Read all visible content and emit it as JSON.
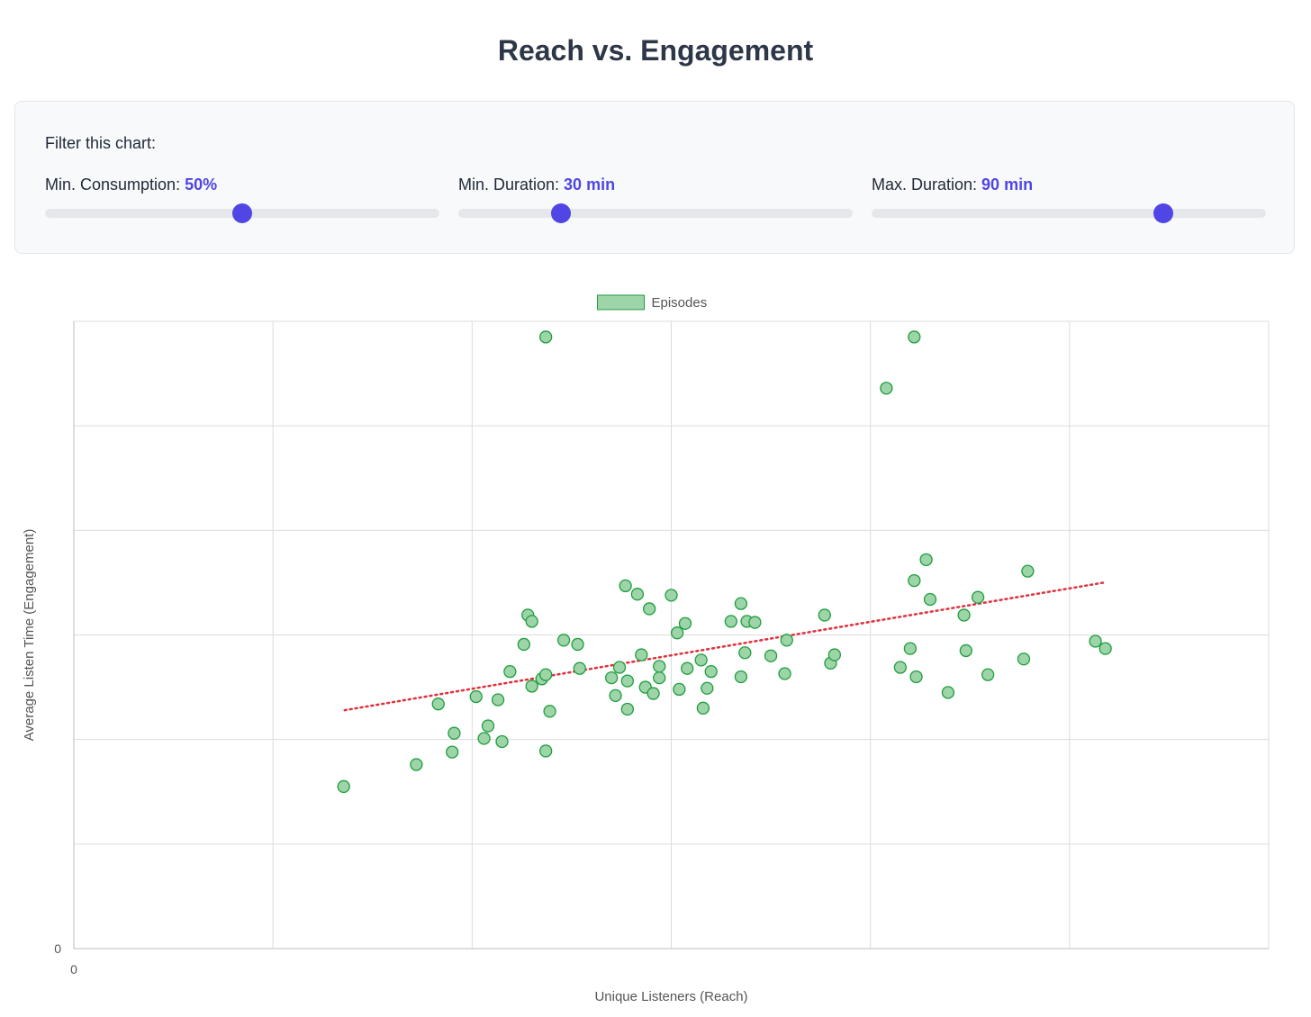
{
  "title": "Reach vs. Engagement",
  "filters": {
    "heading": "Filter this chart:",
    "controls": [
      {
        "label": "Min. Consumption: ",
        "value_text": "50%",
        "fraction": 0.5
      },
      {
        "label": "Min. Duration: ",
        "value_text": "30 min",
        "fraction": 0.26
      },
      {
        "label": "Max. Duration: ",
        "value_text": "90 min",
        "fraction": 0.74
      }
    ]
  },
  "colors": {
    "accent": "#4f46e5",
    "point_fill": "#9dd4a8",
    "point_stroke": "#1e9e3e",
    "trend": "#e0303e",
    "grid": "#dcdcdc"
  },
  "chart_data": {
    "type": "scatter",
    "xlabel": "Unique Listeners (Reach)",
    "ylabel": "Average Listen Time (Engagement)",
    "x_tick_labels": [
      "0"
    ],
    "y_tick_labels": [
      "0"
    ],
    "xlim": [
      0,
      6
    ],
    "ylim": [
      0,
      6
    ],
    "grid": true,
    "legend": {
      "position": "top-center",
      "entries": [
        "Episodes"
      ]
    },
    "series": [
      {
        "name": "Episodes",
        "points": [
          [
            1.355,
            1.55
          ],
          [
            1.72,
            1.76
          ],
          [
            1.83,
            2.34
          ],
          [
            1.91,
            2.06
          ],
          [
            1.9,
            1.88
          ],
          [
            2.02,
            2.41
          ],
          [
            2.06,
            2.01
          ],
          [
            2.08,
            2.13
          ],
          [
            2.13,
            2.38
          ],
          [
            2.15,
            1.98
          ],
          [
            2.19,
            2.65
          ],
          [
            2.26,
            2.91
          ],
          [
            2.28,
            3.19
          ],
          [
            2.3,
            2.51
          ],
          [
            2.3,
            3.13
          ],
          [
            2.35,
            2.58
          ],
          [
            2.37,
            2.62
          ],
          [
            2.37,
            1.89
          ],
          [
            2.39,
            2.27
          ],
          [
            2.37,
            5.85
          ],
          [
            2.46,
            2.95
          ],
          [
            2.53,
            2.91
          ],
          [
            2.54,
            2.68
          ],
          [
            2.7,
            2.59
          ],
          [
            2.72,
            2.42
          ],
          [
            2.74,
            2.69
          ],
          [
            2.77,
            3.47
          ],
          [
            2.78,
            2.56
          ],
          [
            2.78,
            2.29
          ],
          [
            2.83,
            3.39
          ],
          [
            2.85,
            2.81
          ],
          [
            2.87,
            2.5
          ],
          [
            2.89,
            3.25
          ],
          [
            2.91,
            2.44
          ],
          [
            2.94,
            2.59
          ],
          [
            2.94,
            2.7
          ],
          [
            3.0,
            3.38
          ],
          [
            3.03,
            3.02
          ],
          [
            3.04,
            2.48
          ],
          [
            3.07,
            3.11
          ],
          [
            3.08,
            2.68
          ],
          [
            3.15,
            2.76
          ],
          [
            3.16,
            2.3
          ],
          [
            3.18,
            2.49
          ],
          [
            3.2,
            2.65
          ],
          [
            3.3,
            3.13
          ],
          [
            3.35,
            2.6
          ],
          [
            3.35,
            3.3
          ],
          [
            3.37,
            2.83
          ],
          [
            3.38,
            3.13
          ],
          [
            3.42,
            3.12
          ],
          [
            3.5,
            2.8
          ],
          [
            3.57,
            2.63
          ],
          [
            3.58,
            2.95
          ],
          [
            3.77,
            3.19
          ],
          [
            3.8,
            2.73
          ],
          [
            3.82,
            2.81
          ],
          [
            4.08,
            5.36
          ],
          [
            4.15,
            2.69
          ],
          [
            4.2,
            2.87
          ],
          [
            4.22,
            3.52
          ],
          [
            4.22,
            5.85
          ],
          [
            4.23,
            2.6
          ],
          [
            4.28,
            3.72
          ],
          [
            4.3,
            3.34
          ],
          [
            4.39,
            2.45
          ],
          [
            4.47,
            3.19
          ],
          [
            4.48,
            2.85
          ],
          [
            4.54,
            3.36
          ],
          [
            4.59,
            2.62
          ],
          [
            4.77,
            2.77
          ],
          [
            4.79,
            3.61
          ],
          [
            5.13,
            2.94
          ],
          [
            5.18,
            2.87
          ]
        ]
      }
    ],
    "trendline": {
      "x": [
        1.36,
        5.17
      ],
      "y": [
        2.28,
        3.5
      ]
    }
  }
}
